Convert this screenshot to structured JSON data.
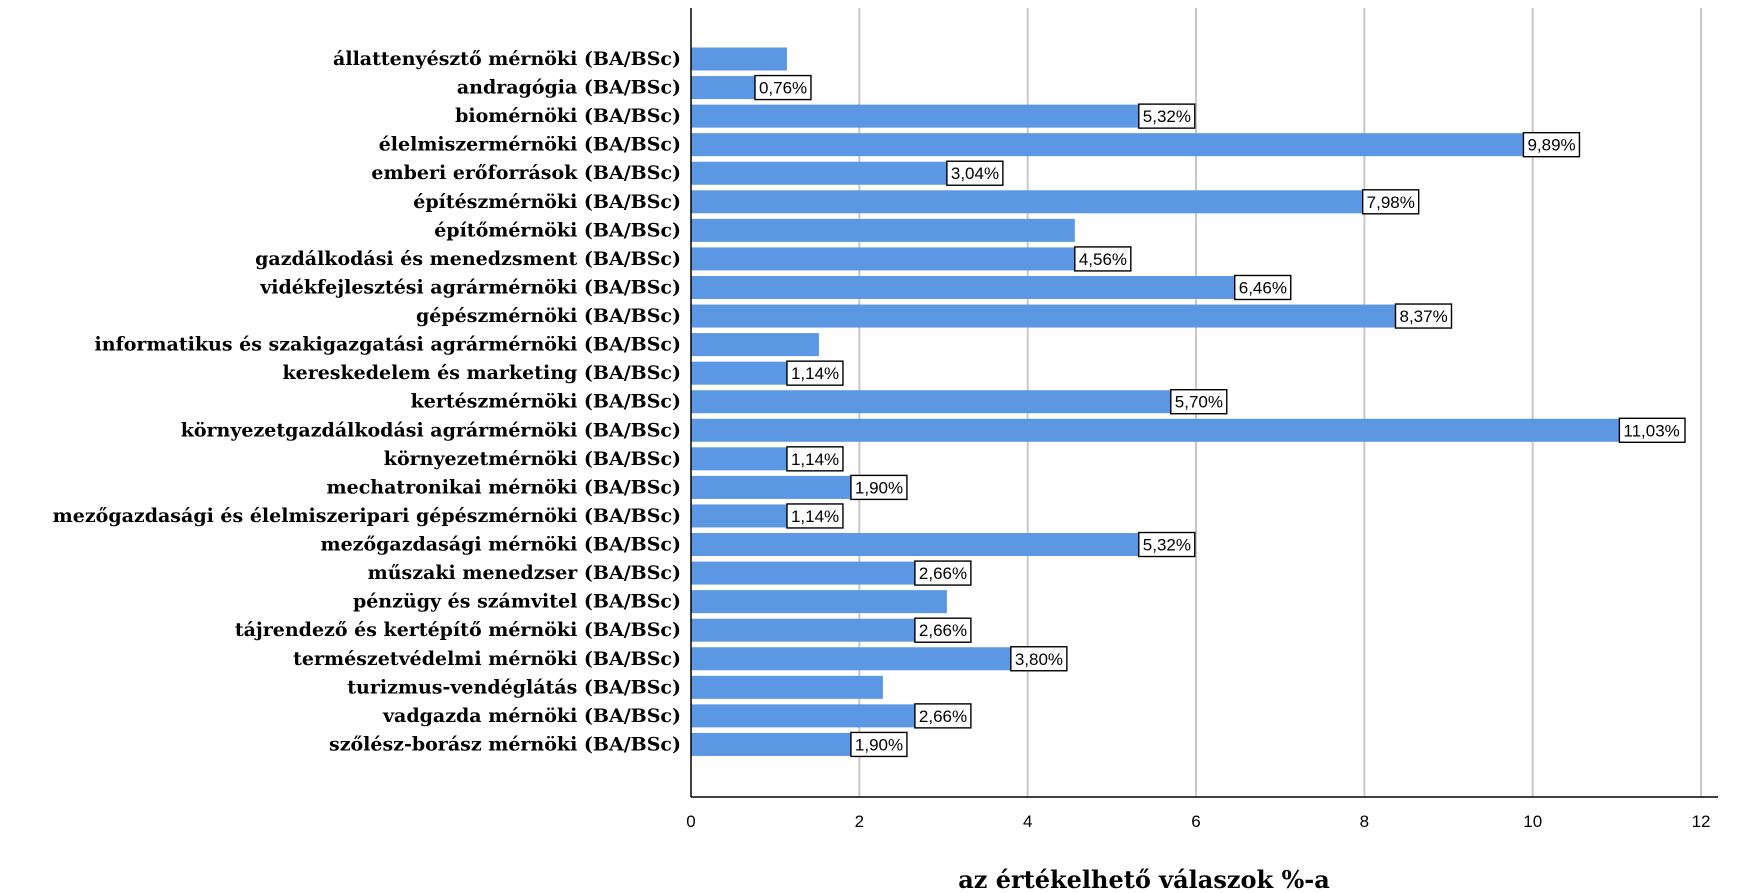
{
  "chart_data": {
    "type": "bar",
    "orientation": "horizontal",
    "title": "",
    "xlabel": "az értékelhető válaszok %-a",
    "ylabel": "",
    "xlim": [
      0,
      12.5
    ],
    "xticks": [
      0,
      2,
      4,
      6,
      8,
      10,
      12
    ],
    "grid": "vertical",
    "bar_color": "#5b97e3",
    "categories": [
      "állattenyésztő mérnöki (BA/BSc)",
      "andragógia (BA/BSc)",
      "biomérnöki (BA/BSc)",
      "élelmiszermérnöki (BA/BSc)",
      "emberi erőforrások (BA/BSc)",
      "építészmérnöki (BA/BSc)",
      "építőmérnöki (BA/BSc)",
      "gazdálkodási és menedzsment (BA/BSc)",
      "vidékfejlesztési agrármérnöki (BA/BSc)",
      "gépészmérnöki (BA/BSc)",
      "informatikus és szakigazgatási agrármérnöki (BA/BSc)",
      "kereskedelem és marketing (BA/BSc)",
      "kertészmérnöki (BA/BSc)",
      "környezetgazdálkodási agrármérnöki (BA/BSc)",
      "környezetmérnöki (BA/BSc)",
      "mechatronikai mérnöki (BA/BSc)",
      "mezőgazdasági és élelmiszeripari gépészmérnöki (BA/BSc)",
      "mezőgazdasági mérnöki (BA/BSc)",
      "műszaki menedzser (BA/BSc)",
      "pénzügy és számvitel (BA/BSc)",
      "tájrendező és kertépítő mérnöki (BA/BSc)",
      "természetvédelmi mérnöki (BA/BSc)",
      "turizmus-vendéglátás (BA/BSc)",
      "vadgazda mérnöki (BA/BSc)",
      "szőlész-borász mérnöki (BA/BSc)"
    ],
    "values": [
      1.14,
      0.76,
      5.32,
      9.89,
      3.04,
      7.98,
      4.56,
      4.56,
      6.46,
      8.37,
      1.52,
      1.14,
      5.7,
      11.03,
      1.14,
      1.9,
      1.14,
      5.32,
      2.66,
      3.04,
      2.66,
      3.8,
      2.28,
      2.66,
      1.9
    ],
    "data_labels": [
      null,
      "0,76%",
      "5,32%",
      "9,89%",
      "3,04%",
      "7,98%",
      null,
      "4,56%",
      "6,46%",
      "8,37%",
      null,
      "1,14%",
      "5,70%",
      "11,03%",
      "1,14%",
      "1,90%",
      "1,14%",
      "5,32%",
      "2,66%",
      null,
      "2,66%",
      "3,80%",
      null,
      "2,66%",
      "1,90%"
    ]
  }
}
